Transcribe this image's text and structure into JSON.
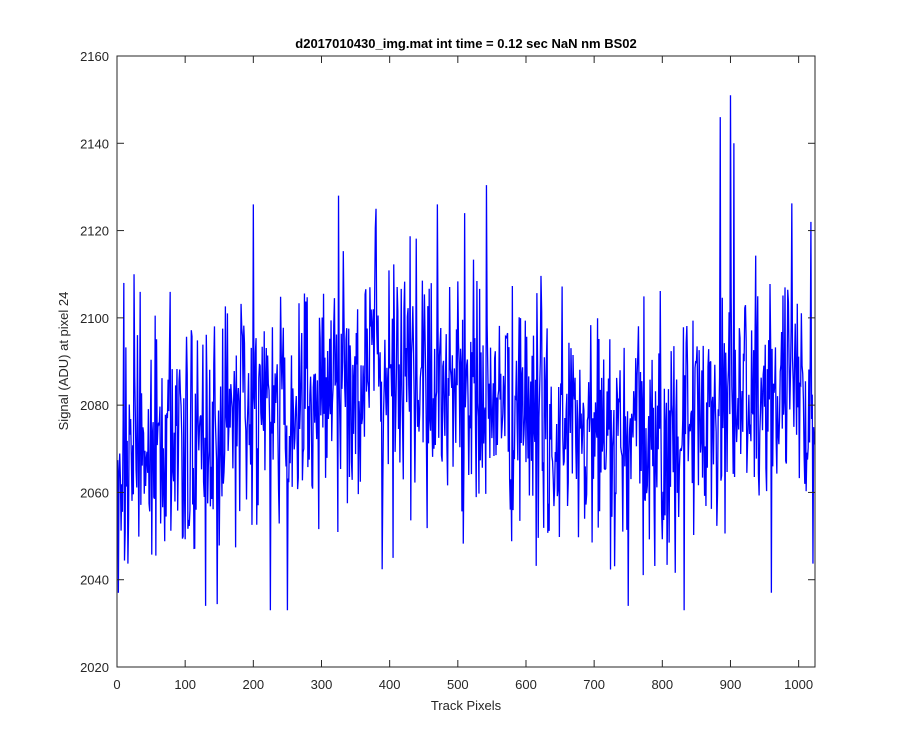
{
  "chart_data": {
    "type": "line",
    "title": "d2017010430_img.mat int time = 0.12 sec  NaN nm BS02",
    "xlabel": "Track Pixels",
    "ylabel": "Signal (ADU) at pixel 24",
    "xlim": [
      0,
      1024
    ],
    "ylim": [
      2020,
      2160
    ],
    "xticks": [
      0,
      100,
      200,
      300,
      400,
      500,
      600,
      700,
      800,
      900,
      1000
    ],
    "xtick_labels": [
      "0",
      "100",
      "200",
      "300",
      "400",
      "500",
      "600",
      "700",
      "800",
      "900",
      "1000"
    ],
    "yticks": [
      2020,
      2040,
      2060,
      2080,
      2100,
      2120,
      2140,
      2160
    ],
    "ytick_labels": [
      "2020",
      "2040",
      "2060",
      "2080",
      "2100",
      "2120",
      "2140",
      "2160"
    ],
    "grid": false,
    "box": true,
    "series": [
      {
        "name": "signal",
        "color": "#0000ff",
        "x_start": 1,
        "x_step": 1,
        "n_points": 1024,
        "baseline_anchors": [
          [
            0,
            2071
          ],
          [
            100,
            2071
          ],
          [
            150,
            2073
          ],
          [
            200,
            2078
          ],
          [
            260,
            2080
          ],
          [
            320,
            2085
          ],
          [
            400,
            2088
          ],
          [
            450,
            2086
          ],
          [
            500,
            2084
          ],
          [
            560,
            2080
          ],
          [
            620,
            2075
          ],
          [
            700,
            2072
          ],
          [
            760,
            2070
          ],
          [
            820,
            2072
          ],
          [
            870,
            2080
          ],
          [
            930,
            2082
          ],
          [
            1024,
            2080
          ]
        ],
        "noise_std_adu": 14,
        "min_approx": 2033,
        "max_approx": 2151,
        "spikes": [
          [
            2,
            2037
          ],
          [
            10,
            2108
          ],
          [
            25,
            2110
          ],
          [
            130,
            2034
          ],
          [
            200,
            2126
          ],
          [
            225,
            2033
          ],
          [
            250,
            2033
          ],
          [
            325,
            2128
          ],
          [
            380,
            2125
          ],
          [
            405,
            2045
          ],
          [
            470,
            2126
          ],
          [
            510,
            2124
          ],
          [
            750,
            2034
          ],
          [
            885,
            2146
          ],
          [
            900,
            2151
          ],
          [
            905,
            2140
          ],
          [
            960,
            2037
          ],
          [
            1018,
            2122
          ]
        ]
      }
    ]
  }
}
